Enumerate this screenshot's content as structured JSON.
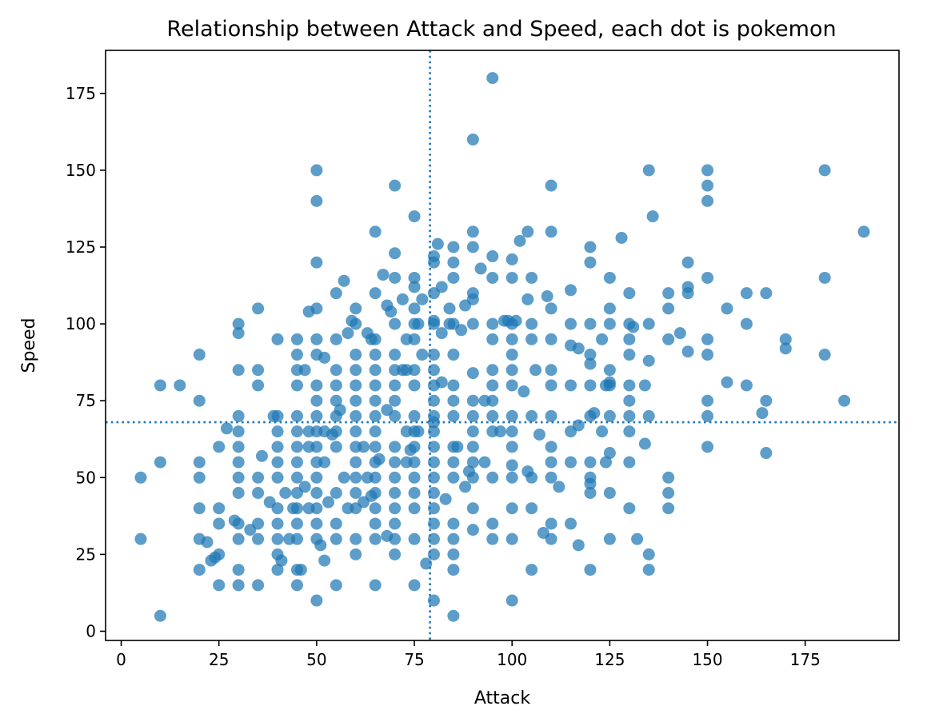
{
  "chart_data": {
    "type": "scatter",
    "title": "Relationship between Attack and Speed, each dot is pokemon",
    "xlabel": "Attack",
    "ylabel": "Speed",
    "xlim": [
      -4,
      199
    ],
    "ylim": [
      -3,
      189
    ],
    "xticks": [
      0,
      25,
      50,
      75,
      100,
      125,
      150,
      175
    ],
    "yticks": [
      0,
      25,
      50,
      75,
      100,
      125,
      150,
      175
    ],
    "grid": false,
    "marker_color": "#1f77b4",
    "reference_lines": {
      "vertical_x": 79,
      "horizontal_y": 68,
      "style": "dotted",
      "color": "#1f77b4"
    },
    "points": [
      [
        5,
        50
      ],
      [
        5,
        30
      ],
      [
        10,
        80
      ],
      [
        10,
        55
      ],
      [
        10,
        5
      ],
      [
        15,
        80
      ],
      [
        20,
        90
      ],
      [
        20,
        75
      ],
      [
        20,
        55
      ],
      [
        20,
        50
      ],
      [
        20,
        40
      ],
      [
        20,
        30
      ],
      [
        20,
        20
      ],
      [
        22,
        29
      ],
      [
        23,
        23
      ],
      [
        24,
        24
      ],
      [
        25,
        25
      ],
      [
        25,
        60
      ],
      [
        25,
        40
      ],
      [
        25,
        35
      ],
      [
        25,
        15
      ],
      [
        27,
        66
      ],
      [
        29,
        36
      ],
      [
        30,
        100
      ],
      [
        30,
        97
      ],
      [
        30,
        85
      ],
      [
        30,
        70
      ],
      [
        30,
        65
      ],
      [
        30,
        60
      ],
      [
        30,
        55
      ],
      [
        30,
        50
      ],
      [
        30,
        45
      ],
      [
        30,
        35
      ],
      [
        30,
        30
      ],
      [
        30,
        20
      ],
      [
        30,
        15
      ],
      [
        33,
        33
      ],
      [
        35,
        105
      ],
      [
        35,
        85
      ],
      [
        35,
        80
      ],
      [
        35,
        50
      ],
      [
        35,
        45
      ],
      [
        35,
        35
      ],
      [
        35,
        30
      ],
      [
        35,
        15
      ],
      [
        36,
        57
      ],
      [
        38,
        42
      ],
      [
        39,
        70
      ],
      [
        40,
        95
      ],
      [
        40,
        70
      ],
      [
        40,
        65
      ],
      [
        40,
        60
      ],
      [
        40,
        55
      ],
      [
        40,
        50
      ],
      [
        40,
        40
      ],
      [
        40,
        35
      ],
      [
        40,
        30
      ],
      [
        40,
        25
      ],
      [
        40,
        20
      ],
      [
        41,
        23
      ],
      [
        42,
        45
      ],
      [
        43,
        30
      ],
      [
        44,
        40
      ],
      [
        45,
        95
      ],
      [
        45,
        90
      ],
      [
        45,
        85
      ],
      [
        45,
        80
      ],
      [
        45,
        70
      ],
      [
        45,
        65
      ],
      [
        45,
        60
      ],
      [
        45,
        55
      ],
      [
        45,
        50
      ],
      [
        45,
        45
      ],
      [
        45,
        40
      ],
      [
        45,
        35
      ],
      [
        45,
        30
      ],
      [
        45,
        20
      ],
      [
        45,
        15
      ],
      [
        46,
        20
      ],
      [
        47,
        85
      ],
      [
        47,
        47
      ],
      [
        48,
        104
      ],
      [
        48,
        65
      ],
      [
        48,
        60
      ],
      [
        48,
        40
      ],
      [
        50,
        150
      ],
      [
        50,
        140
      ],
      [
        50,
        120
      ],
      [
        50,
        105
      ],
      [
        50,
        95
      ],
      [
        50,
        90
      ],
      [
        50,
        80
      ],
      [
        50,
        75
      ],
      [
        50,
        70
      ],
      [
        50,
        65
      ],
      [
        50,
        60
      ],
      [
        50,
        55
      ],
      [
        50,
        50
      ],
      [
        50,
        45
      ],
      [
        50,
        40
      ],
      [
        50,
        35
      ],
      [
        50,
        30
      ],
      [
        50,
        10
      ],
      [
        51,
        28
      ],
      [
        52,
        89
      ],
      [
        52,
        65
      ],
      [
        52,
        55
      ],
      [
        52,
        23
      ],
      [
        53,
        42
      ],
      [
        54,
        64
      ],
      [
        55,
        110
      ],
      [
        55,
        95
      ],
      [
        55,
        85
      ],
      [
        55,
        80
      ],
      [
        55,
        75
      ],
      [
        55,
        70
      ],
      [
        55,
        65
      ],
      [
        55,
        60
      ],
      [
        55,
        45
      ],
      [
        55,
        35
      ],
      [
        55,
        30
      ],
      [
        55,
        15
      ],
      [
        56,
        72
      ],
      [
        57,
        114
      ],
      [
        57,
        50
      ],
      [
        58,
        97
      ],
      [
        58,
        40
      ],
      [
        59,
        101
      ],
      [
        60,
        105
      ],
      [
        60,
        100
      ],
      [
        60,
        90
      ],
      [
        60,
        85
      ],
      [
        60,
        80
      ],
      [
        60,
        75
      ],
      [
        60,
        70
      ],
      [
        60,
        65
      ],
      [
        60,
        60
      ],
      [
        60,
        55
      ],
      [
        60,
        50
      ],
      [
        60,
        45
      ],
      [
        60,
        40
      ],
      [
        60,
        30
      ],
      [
        60,
        25
      ],
      [
        62,
        60
      ],
      [
        62,
        42
      ],
      [
        63,
        97
      ],
      [
        63,
        50
      ],
      [
        64,
        95
      ],
      [
        64,
        44
      ],
      [
        65,
        130
      ],
      [
        65,
        110
      ],
      [
        65,
        95
      ],
      [
        65,
        90
      ],
      [
        65,
        85
      ],
      [
        65,
        80
      ],
      [
        65,
        75
      ],
      [
        65,
        70
      ],
      [
        65,
        65
      ],
      [
        65,
        60
      ],
      [
        65,
        55
      ],
      [
        65,
        50
      ],
      [
        65,
        45
      ],
      [
        65,
        40
      ],
      [
        65,
        35
      ],
      [
        65,
        30
      ],
      [
        65,
        15
      ],
      [
        66,
        56
      ],
      [
        67,
        116
      ],
      [
        68,
        106
      ],
      [
        68,
        72
      ],
      [
        68,
        31
      ],
      [
        69,
        104
      ],
      [
        70,
        145
      ],
      [
        70,
        123
      ],
      [
        70,
        115
      ],
      [
        70,
        100
      ],
      [
        70,
        90
      ],
      [
        70,
        85
      ],
      [
        70,
        80
      ],
      [
        70,
        75
      ],
      [
        70,
        70
      ],
      [
        70,
        60
      ],
      [
        70,
        55
      ],
      [
        70,
        50
      ],
      [
        70,
        45
      ],
      [
        70,
        40
      ],
      [
        70,
        35
      ],
      [
        70,
        30
      ],
      [
        70,
        25
      ],
      [
        72,
        108
      ],
      [
        72,
        85
      ],
      [
        73,
        95
      ],
      [
        73,
        85
      ],
      [
        73,
        65
      ],
      [
        73,
        55
      ],
      [
        74,
        59
      ],
      [
        75,
        135
      ],
      [
        75,
        115
      ],
      [
        75,
        112
      ],
      [
        75,
        105
      ],
      [
        75,
        100
      ],
      [
        75,
        95
      ],
      [
        75,
        85
      ],
      [
        75,
        80
      ],
      [
        75,
        70
      ],
      [
        75,
        65
      ],
      [
        75,
        60
      ],
      [
        75,
        55
      ],
      [
        75,
        50
      ],
      [
        75,
        45
      ],
      [
        75,
        40
      ],
      [
        75,
        30
      ],
      [
        75,
        15
      ],
      [
        76,
        100
      ],
      [
        76,
        65
      ],
      [
        77,
        90
      ],
      [
        77,
        108
      ],
      [
        78,
        22
      ],
      [
        80,
        122
      ],
      [
        80,
        120
      ],
      [
        80,
        110
      ],
      [
        80,
        101
      ],
      [
        80,
        100
      ],
      [
        80,
        90
      ],
      [
        80,
        85
      ],
      [
        80,
        80
      ],
      [
        80,
        75
      ],
      [
        80,
        70
      ],
      [
        80,
        68
      ],
      [
        80,
        65
      ],
      [
        80,
        60
      ],
      [
        80,
        55
      ],
      [
        80,
        50
      ],
      [
        80,
        45
      ],
      [
        80,
        40
      ],
      [
        80,
        35
      ],
      [
        80,
        30
      ],
      [
        80,
        25
      ],
      [
        80,
        10
      ],
      [
        81,
        126
      ],
      [
        82,
        112
      ],
      [
        82,
        97
      ],
      [
        82,
        81
      ],
      [
        83,
        43
      ],
      [
        84,
        105
      ],
      [
        84,
        100
      ],
      [
        85,
        125
      ],
      [
        85,
        120
      ],
      [
        85,
        115
      ],
      [
        85,
        100
      ],
      [
        85,
        90
      ],
      [
        85,
        80
      ],
      [
        85,
        75
      ],
      [
        85,
        70
      ],
      [
        85,
        60
      ],
      [
        85,
        55
      ],
      [
        85,
        50
      ],
      [
        85,
        35
      ],
      [
        85,
        30
      ],
      [
        85,
        25
      ],
      [
        85,
        20
      ],
      [
        85,
        5
      ],
      [
        86,
        60
      ],
      [
        87,
        98
      ],
      [
        88,
        106
      ],
      [
        88,
        47
      ],
      [
        89,
        52
      ],
      [
        90,
        130
      ],
      [
        90,
        125
      ],
      [
        90,
        110
      ],
      [
        90,
        108
      ],
      [
        90,
        100
      ],
      [
        90,
        84
      ],
      [
        90,
        75
      ],
      [
        90,
        70
      ],
      [
        90,
        65
      ],
      [
        90,
        60
      ],
      [
        90,
        55
      ],
      [
        90,
        50
      ],
      [
        90,
        40
      ],
      [
        90,
        33
      ],
      [
        90,
        160
      ],
      [
        92,
        118
      ],
      [
        93,
        55
      ],
      [
        93,
        75
      ],
      [
        95,
        180
      ],
      [
        95,
        122
      ],
      [
        95,
        115
      ],
      [
        95,
        100
      ],
      [
        95,
        95
      ],
      [
        95,
        85
      ],
      [
        95,
        80
      ],
      [
        95,
        75
      ],
      [
        95,
        70
      ],
      [
        95,
        65
      ],
      [
        95,
        50
      ],
      [
        95,
        35
      ],
      [
        95,
        30
      ],
      [
        97,
        65
      ],
      [
        98,
        101
      ],
      [
        99,
        101
      ],
      [
        100,
        121
      ],
      [
        100,
        115
      ],
      [
        100,
        100
      ],
      [
        100,
        95
      ],
      [
        100,
        90
      ],
      [
        100,
        85
      ],
      [
        100,
        80
      ],
      [
        100,
        70
      ],
      [
        100,
        65
      ],
      [
        100,
        60
      ],
      [
        100,
        54
      ],
      [
        100,
        50
      ],
      [
        100,
        40
      ],
      [
        100,
        30
      ],
      [
        100,
        10
      ],
      [
        101,
        101
      ],
      [
        102,
        127
      ],
      [
        103,
        78
      ],
      [
        104,
        52
      ],
      [
        104,
        130
      ],
      [
        104,
        108
      ],
      [
        105,
        115
      ],
      [
        105,
        100
      ],
      [
        105,
        95
      ],
      [
        105,
        70
      ],
      [
        105,
        50
      ],
      [
        105,
        40
      ],
      [
        105,
        20
      ],
      [
        106,
        85
      ],
      [
        107,
        64
      ],
      [
        108,
        32
      ],
      [
        109,
        109
      ],
      [
        110,
        145
      ],
      [
        110,
        130
      ],
      [
        110,
        105
      ],
      [
        110,
        95
      ],
      [
        110,
        85
      ],
      [
        110,
        80
      ],
      [
        110,
        70
      ],
      [
        110,
        60
      ],
      [
        110,
        55
      ],
      [
        110,
        50
      ],
      [
        110,
        35
      ],
      [
        110,
        30
      ],
      [
        112,
        47
      ],
      [
        115,
        111
      ],
      [
        115,
        100
      ],
      [
        115,
        93
      ],
      [
        115,
        80
      ],
      [
        115,
        65
      ],
      [
        115,
        55
      ],
      [
        115,
        35
      ],
      [
        117,
        92
      ],
      [
        117,
        67
      ],
      [
        117,
        28
      ],
      [
        120,
        125
      ],
      [
        120,
        120
      ],
      [
        120,
        100
      ],
      [
        120,
        90
      ],
      [
        120,
        87
      ],
      [
        120,
        80
      ],
      [
        120,
        70
      ],
      [
        120,
        55
      ],
      [
        120,
        50
      ],
      [
        120,
        48
      ],
      [
        120,
        45
      ],
      [
        120,
        20
      ],
      [
        121,
        71
      ],
      [
        123,
        95
      ],
      [
        123,
        65
      ],
      [
        124,
        80
      ],
      [
        124,
        55
      ],
      [
        125,
        115
      ],
      [
        125,
        105
      ],
      [
        125,
        100
      ],
      [
        125,
        85
      ],
      [
        125,
        81
      ],
      [
        125,
        80
      ],
      [
        125,
        70
      ],
      [
        125,
        58
      ],
      [
        125,
        45
      ],
      [
        125,
        30
      ],
      [
        128,
        128
      ],
      [
        130,
        110
      ],
      [
        130,
        100
      ],
      [
        130,
        95
      ],
      [
        130,
        90
      ],
      [
        130,
        80
      ],
      [
        130,
        75
      ],
      [
        130,
        70
      ],
      [
        130,
        65
      ],
      [
        130,
        55
      ],
      [
        130,
        40
      ],
      [
        131,
        99
      ],
      [
        132,
        30
      ],
      [
        134,
        80
      ],
      [
        134,
        61
      ],
      [
        135,
        150
      ],
      [
        135,
        100
      ],
      [
        135,
        88
      ],
      [
        135,
        70
      ],
      [
        135,
        25
      ],
      [
        135,
        20
      ],
      [
        136,
        135
      ],
      [
        140,
        110
      ],
      [
        140,
        105
      ],
      [
        140,
        95
      ],
      [
        140,
        50
      ],
      [
        140,
        45
      ],
      [
        140,
        40
      ],
      [
        143,
        97
      ],
      [
        145,
        120
      ],
      [
        145,
        112
      ],
      [
        145,
        110
      ],
      [
        145,
        91
      ],
      [
        150,
        150
      ],
      [
        150,
        145
      ],
      [
        150,
        140
      ],
      [
        150,
        115
      ],
      [
        150,
        95
      ],
      [
        150,
        90
      ],
      [
        150,
        75
      ],
      [
        150,
        70
      ],
      [
        150,
        60
      ],
      [
        155,
        81
      ],
      [
        155,
        105
      ],
      [
        160,
        110
      ],
      [
        160,
        100
      ],
      [
        160,
        80
      ],
      [
        164,
        71
      ],
      [
        165,
        110
      ],
      [
        165,
        75
      ],
      [
        165,
        58
      ],
      [
        170,
        95
      ],
      [
        170,
        92
      ],
      [
        180,
        150
      ],
      [
        180,
        115
      ],
      [
        180,
        90
      ],
      [
        185,
        75
      ],
      [
        190,
        130
      ]
    ]
  }
}
